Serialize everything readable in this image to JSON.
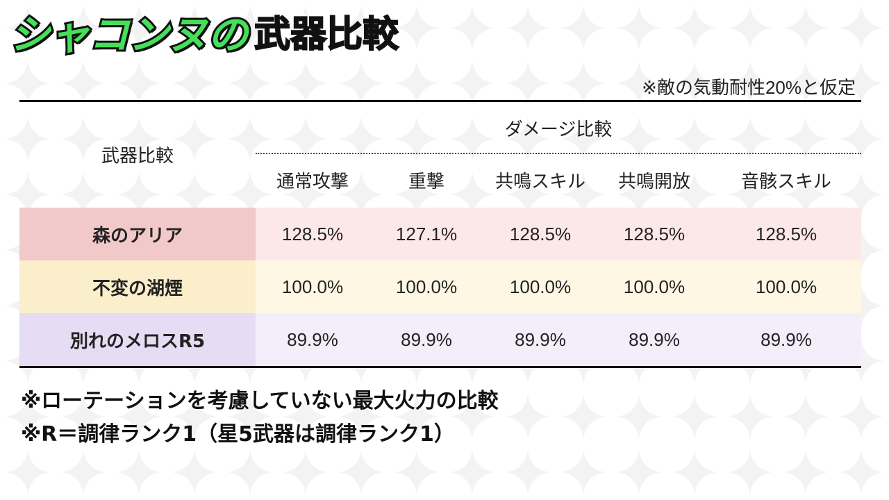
{
  "title": {
    "green": "シャコンヌの",
    "black": "武器比較"
  },
  "note_top": "※敵の気動耐性20%と仮定",
  "table": {
    "weapon_header": "武器比較",
    "group_header": "ダメージ比較",
    "columns": [
      "通常攻撃",
      "重撃",
      "共鳴スキル",
      "共鳴開放",
      "音骸スキル"
    ],
    "rows": [
      {
        "name": "森のアリア",
        "values": [
          "128.5%",
          "127.1%",
          "128.5%",
          "128.5%",
          "128.5%"
        ],
        "name_bg": "#f2c9c9",
        "row_bg": "#fce8e8"
      },
      {
        "name": "不変の湖煙",
        "values": [
          "100.0%",
          "100.0%",
          "100.0%",
          "100.0%",
          "100.0%"
        ],
        "name_bg": "#fbeecb",
        "row_bg": "#fdf7e3"
      },
      {
        "name": "別れのメロスR5",
        "values": [
          "89.9%",
          "89.9%",
          "89.9%",
          "89.9%",
          "89.9%"
        ],
        "name_bg": "#e6dcf3",
        "row_bg": "#f3eefa"
      }
    ]
  },
  "footnotes": [
    "※ローテーションを考慮していない最大火力の比較",
    "※R＝調律ランク1（星5武器は調律ランク1）"
  ],
  "colors": {
    "title_green": "#45e05a",
    "rule": "#111111"
  }
}
